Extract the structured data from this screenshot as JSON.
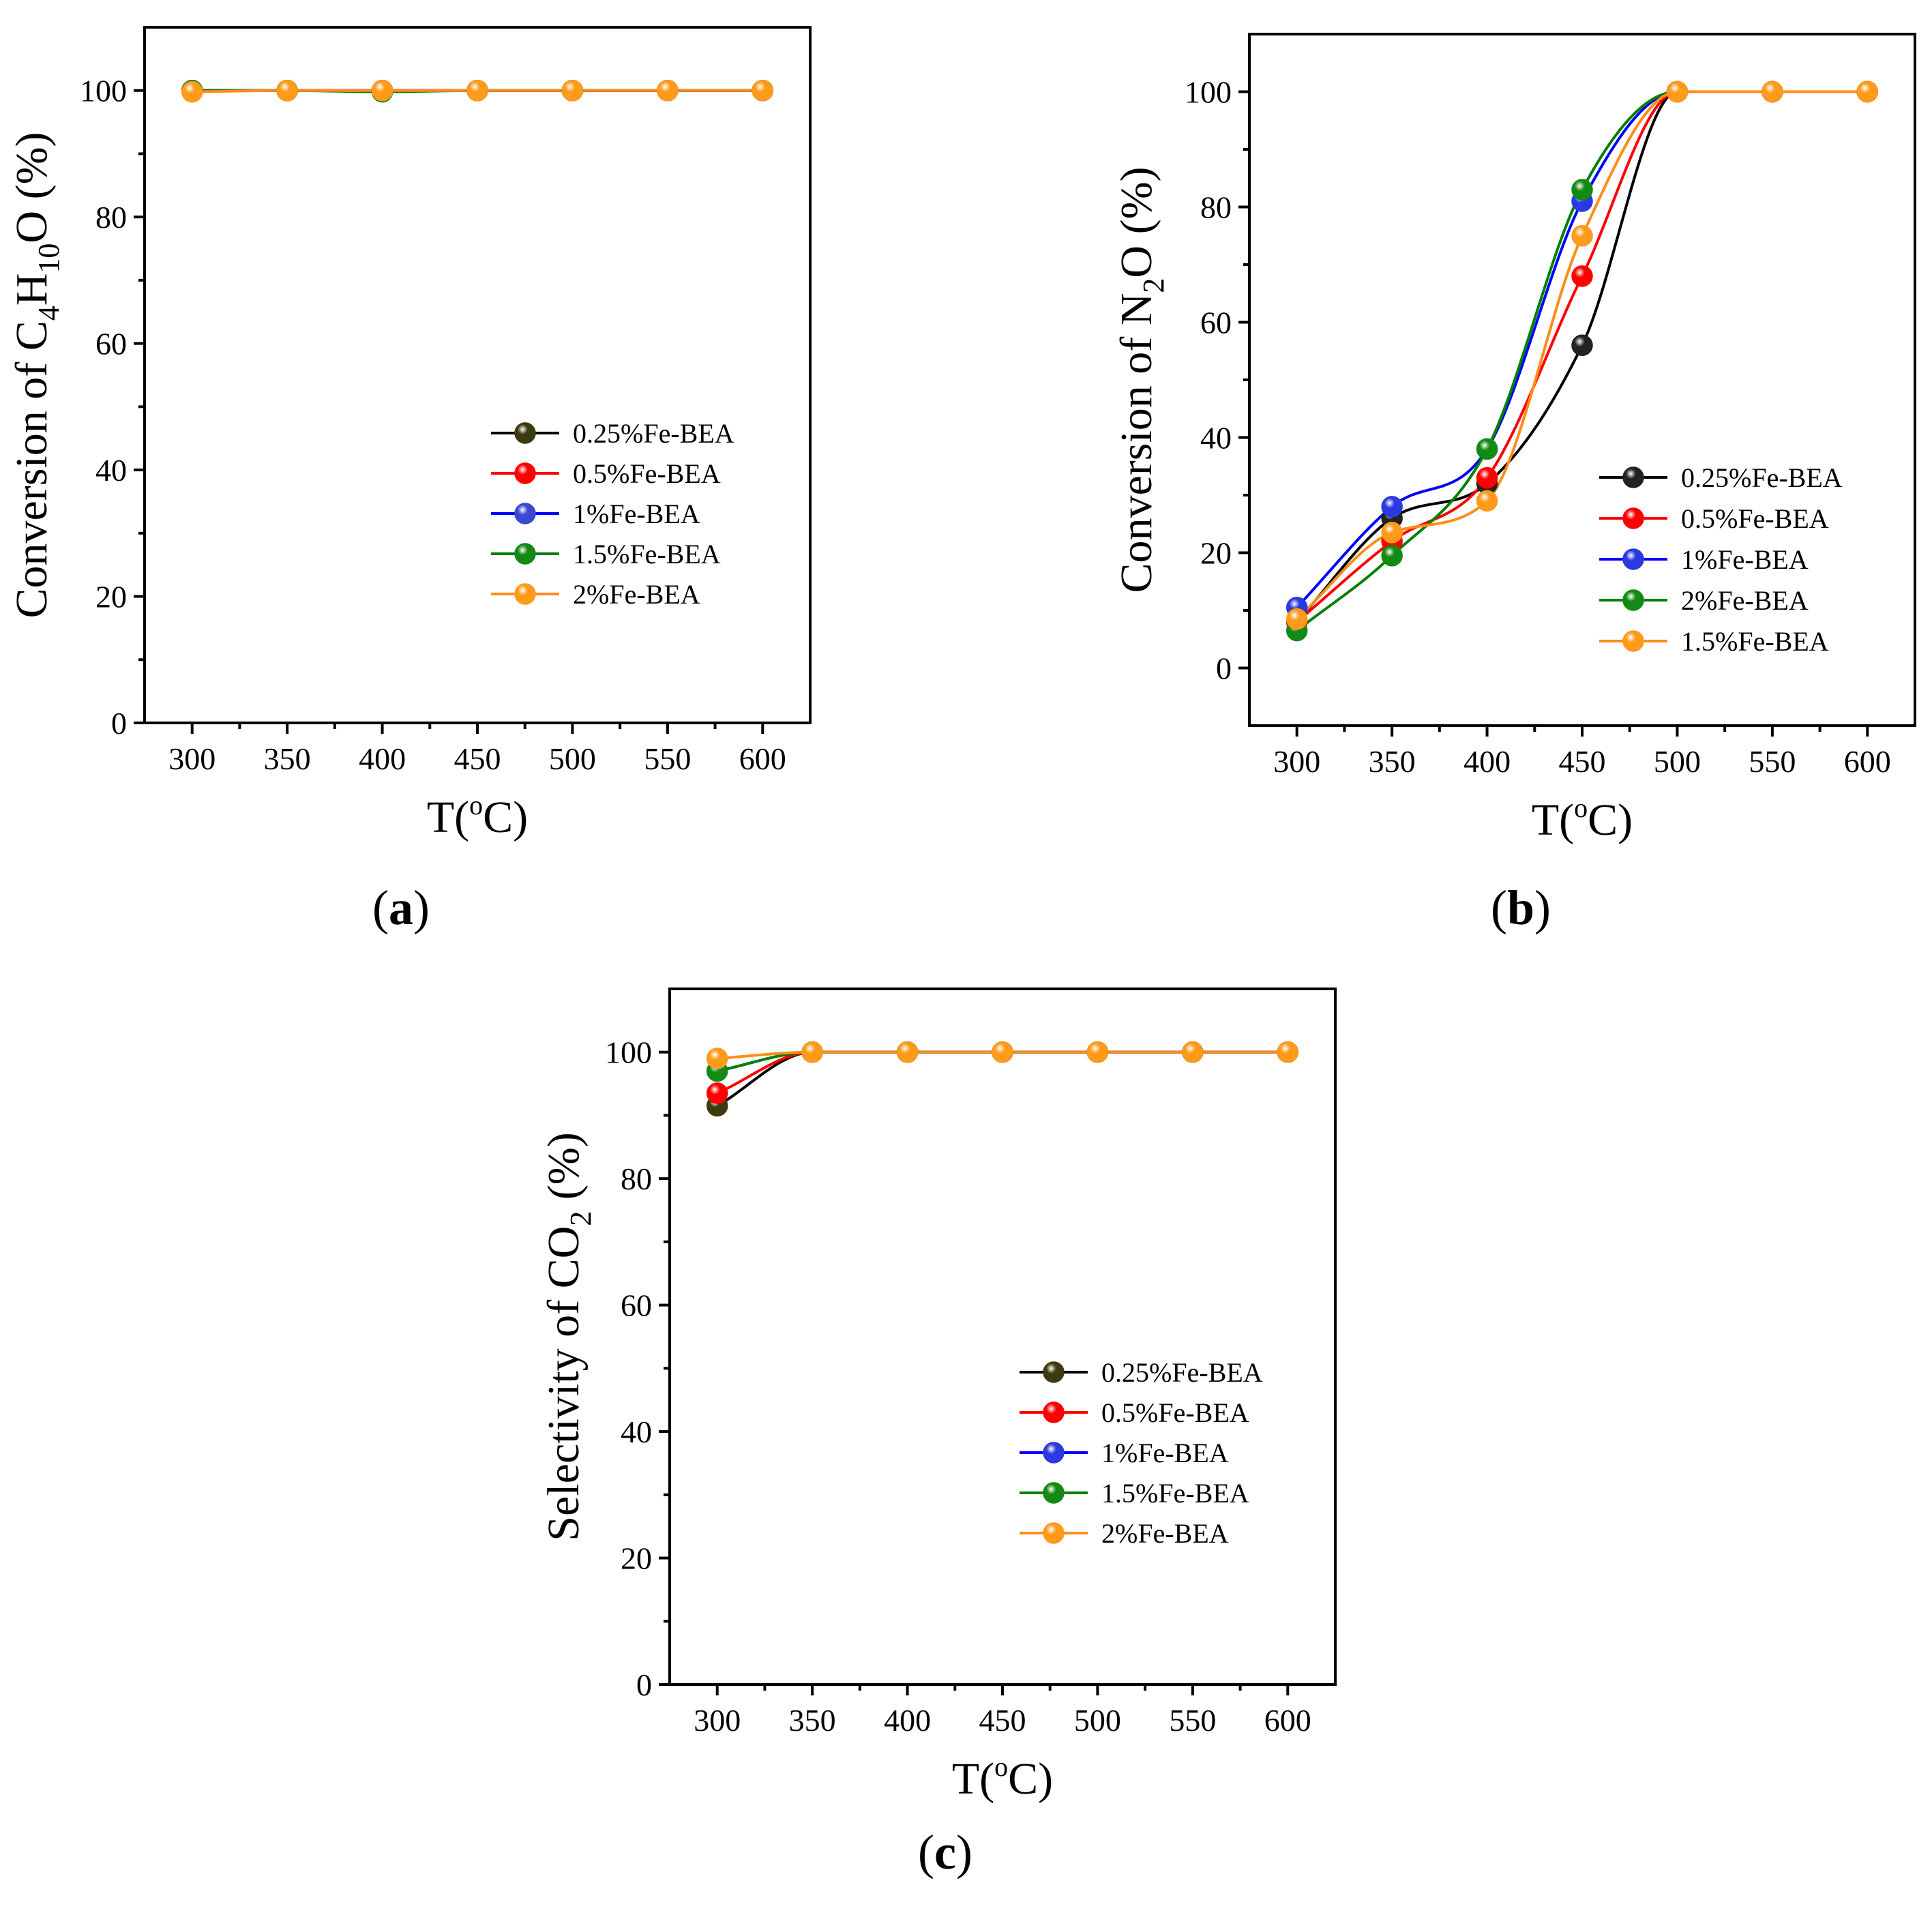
{
  "figure": {
    "panel_labels": [
      {
        "open": "(",
        "letter": "a",
        "close": ")"
      },
      {
        "open": "(",
        "letter": "b",
        "close": ")"
      },
      {
        "open": "(",
        "letter": "c",
        "close": ")"
      }
    ]
  },
  "colors": {
    "black": "#000000",
    "red": "#ff0000",
    "blue": "#0000ff",
    "green": "#008000",
    "orange": "#ff8c1a"
  },
  "chart_data": [
    {
      "id": "a",
      "type": "line",
      "title": "",
      "xlabel": {
        "pre": "T(",
        "sup": "o",
        "post": "C)"
      },
      "ylabel": {
        "parts": [
          {
            "t": "Conversion of C"
          },
          {
            "t": "4",
            "sub": true
          },
          {
            "t": "H"
          },
          {
            "t": "10",
            "sub": true
          },
          {
            "t": "O (%)"
          }
        ]
      },
      "xlim": [
        275,
        625
      ],
      "ylim": [
        0,
        110
      ],
      "xticks": [
        300,
        350,
        400,
        450,
        500,
        550,
        600
      ],
      "yticks": [
        0,
        20,
        40,
        60,
        80,
        100
      ],
      "x": [
        300,
        350,
        400,
        450,
        500,
        550,
        600
      ],
      "legend_position": "center-right",
      "series": [
        {
          "name": "0.25%Fe-BEA",
          "color": "#000000",
          "marker": "#3d3a10",
          "values": [
            100,
            100,
            100,
            100,
            100,
            100,
            100
          ]
        },
        {
          "name": "0.5%Fe-BEA",
          "color": "#ff0000",
          "marker": "#ff0000",
          "values": [
            100,
            100,
            100,
            100,
            100,
            100,
            100
          ]
        },
        {
          "name": "1%Fe-BEA",
          "color": "#0000ff",
          "marker": "#3a4ad0",
          "values": [
            100,
            100,
            100,
            100,
            100,
            100,
            100
          ]
        },
        {
          "name": "1.5%Fe-BEA",
          "color": "#008000",
          "marker": "#138a13",
          "values": [
            100,
            100,
            99.8,
            100,
            100,
            100,
            100
          ]
        },
        {
          "name": "2%Fe-BEA",
          "color": "#ff8c1a",
          "marker": "#ff9a1a",
          "values": [
            99.8,
            100,
            100,
            100,
            100,
            100,
            100
          ]
        }
      ]
    },
    {
      "id": "b",
      "type": "line",
      "title": "",
      "xlabel": {
        "pre": "T(",
        "sup": "o",
        "post": "C)"
      },
      "ylabel": {
        "parts": [
          {
            "t": "Conversion of N"
          },
          {
            "t": "2",
            "sub": true
          },
          {
            "t": "O (%)"
          }
        ]
      },
      "xlim": [
        275,
        625
      ],
      "ylim": [
        -10,
        110
      ],
      "xticks": [
        300,
        350,
        400,
        450,
        500,
        550,
        600
      ],
      "yticks": [
        0,
        20,
        40,
        60,
        80,
        100
      ],
      "x": [
        300,
        350,
        400,
        450,
        500,
        550,
        600
      ],
      "legend_position": "center-right",
      "series": [
        {
          "name": "0.25%Fe-BEA",
          "color": "#000000",
          "marker": "#222222",
          "values": [
            8,
            26,
            32,
            56,
            100,
            100,
            100
          ]
        },
        {
          "name": "0.5%Fe-BEA",
          "color": "#ff0000",
          "marker": "#ff0000",
          "values": [
            8,
            22,
            33,
            68,
            100,
            100,
            100
          ]
        },
        {
          "name": "1%Fe-BEA",
          "color": "#0000ff",
          "marker": "#2a3ae0",
          "values": [
            10.5,
            28,
            38,
            81,
            100,
            100,
            100
          ]
        },
        {
          "name": "2%Fe-BEA",
          "color": "#008000",
          "marker": "#138a13",
          "values": [
            6.5,
            19.5,
            38,
            83,
            100,
            100,
            100
          ]
        },
        {
          "name": "1.5%Fe-BEA",
          "color": "#ff8c1a",
          "marker": "#ff9a1a",
          "values": [
            8.5,
            23.5,
            29,
            75,
            100,
            100,
            100
          ]
        }
      ]
    },
    {
      "id": "c",
      "type": "line",
      "title": "",
      "xlabel": {
        "pre": "T(",
        "sup": "o",
        "post": "C)"
      },
      "ylabel": {
        "parts": [
          {
            "t": "Selectivity of CO"
          },
          {
            "t": "2",
            "sub": true
          },
          {
            "t": " (%)"
          }
        ]
      },
      "xlim": [
        275,
        625
      ],
      "ylim": [
        0,
        110
      ],
      "xticks": [
        300,
        350,
        400,
        450,
        500,
        550,
        600
      ],
      "yticks": [
        0,
        20,
        40,
        60,
        80,
        100
      ],
      "x": [
        300,
        350,
        400,
        450,
        500,
        550,
        600
      ],
      "legend_position": "center-right",
      "series": [
        {
          "name": "0.25%Fe-BEA",
          "color": "#000000",
          "marker": "#3d3a10",
          "values": [
            91.5,
            100,
            100,
            100,
            100,
            100,
            100
          ]
        },
        {
          "name": "0.5%Fe-BEA",
          "color": "#ff0000",
          "marker": "#ff0000",
          "values": [
            93.5,
            100,
            100,
            100,
            100,
            100,
            100
          ]
        },
        {
          "name": "1%Fe-BEA",
          "color": "#0000ff",
          "marker": "#2a3ae0",
          "values": [
            97,
            100,
            100,
            100,
            100,
            100,
            100
          ]
        },
        {
          "name": "1.5%Fe-BEA",
          "color": "#008000",
          "marker": "#138a13",
          "values": [
            97,
            100,
            100,
            100,
            100,
            100,
            100
          ]
        },
        {
          "name": "2%Fe-BEA",
          "color": "#ff8c1a",
          "marker": "#ff9a1a",
          "values": [
            99,
            100,
            100,
            100,
            100,
            100,
            100
          ]
        }
      ]
    }
  ]
}
